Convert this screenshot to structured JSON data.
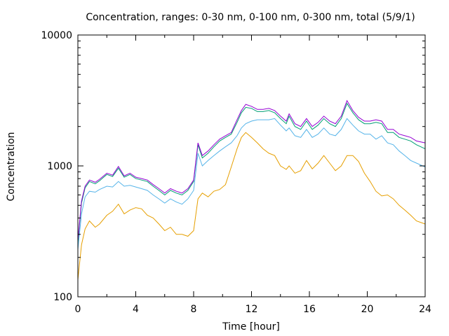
{
  "chart_data": {
    "type": "line",
    "title": "Concentration, ranges: 0-30 nm, 0-100 nm, 0-300 nm, total (5/9/1)",
    "xlabel": "Time [hour]",
    "ylabel": "Concentration",
    "xlim": [
      0,
      24
    ],
    "ylim": [
      100,
      10000
    ],
    "yscale": "log",
    "grid": false,
    "legend": "none",
    "x_ticks": [
      0,
      4,
      8,
      12,
      16,
      20,
      24
    ],
    "x_tick_labels": [
      "0",
      "4",
      "8",
      "12",
      "16",
      "20",
      "24"
    ],
    "y_ticks": [
      100,
      1000,
      10000
    ],
    "y_tick_labels": [
      "100",
      "1000",
      "10000"
    ],
    "series": [
      {
        "color": "#e69f00",
        "x": [
          0,
          0.25,
          0.5,
          0.8,
          1.2,
          1.5,
          2,
          2.4,
          2.8,
          3.2,
          3.6,
          4,
          4.4,
          4.8,
          5.2,
          5.6,
          6,
          6.4,
          6.8,
          7.2,
          7.6,
          8,
          8.3,
          8.6,
          9,
          9.4,
          9.8,
          10.2,
          10.6,
          11,
          11.3,
          11.6,
          12,
          12.4,
          12.8,
          13.2,
          13.6,
          14,
          14.4,
          14.6,
          15,
          15.4,
          15.8,
          16.2,
          16.6,
          17,
          17.4,
          17.8,
          18.2,
          18.6,
          19,
          19.4,
          19.8,
          20.2,
          20.6,
          21,
          21.4,
          21.8,
          22.2,
          22.6,
          23,
          23.4,
          24
        ],
        "y": [
          135,
          250,
          330,
          380,
          340,
          360,
          420,
          450,
          510,
          430,
          460,
          480,
          470,
          420,
          400,
          360,
          320,
          340,
          300,
          300,
          290,
          320,
          560,
          620,
          580,
          640,
          660,
          720,
          980,
          1350,
          1650,
          1800,
          1650,
          1500,
          1350,
          1250,
          1200,
          1000,
          940,
          1000,
          880,
          920,
          1100,
          950,
          1050,
          1200,
          1050,
          920,
          1000,
          1200,
          1200,
          1080,
          880,
          760,
          640,
          590,
          600,
          560,
          500,
          460,
          420,
          380,
          360
        ]
      },
      {
        "color": "#56b4e9",
        "x": [
          0,
          0.25,
          0.5,
          0.8,
          1.2,
          1.5,
          2,
          2.4,
          2.8,
          3.2,
          3.6,
          4,
          4.4,
          4.8,
          5.2,
          5.6,
          6,
          6.4,
          6.8,
          7.2,
          7.6,
          8,
          8.3,
          8.6,
          9,
          9.4,
          9.8,
          10.2,
          10.6,
          11,
          11.3,
          11.6,
          12,
          12.4,
          12.8,
          13.2,
          13.6,
          14,
          14.4,
          14.6,
          15,
          15.4,
          15.8,
          16.2,
          16.6,
          17,
          17.4,
          17.8,
          18.2,
          18.6,
          19,
          19.4,
          19.8,
          20.2,
          20.6,
          21,
          21.4,
          21.8,
          22.2,
          22.6,
          23,
          23.4,
          24
        ],
        "y": [
          230,
          430,
          580,
          640,
          630,
          660,
          700,
          690,
          760,
          700,
          710,
          690,
          670,
          650,
          600,
          560,
          520,
          560,
          530,
          510,
          560,
          650,
          1250,
          1000,
          1100,
          1200,
          1300,
          1400,
          1500,
          1700,
          1950,
          2100,
          2200,
          2250,
          2250,
          2250,
          2300,
          2050,
          1850,
          1950,
          1700,
          1650,
          1900,
          1650,
          1750,
          1950,
          1750,
          1700,
          1900,
          2300,
          2050,
          1850,
          1750,
          1750,
          1600,
          1700,
          1500,
          1450,
          1300,
          1200,
          1100,
          1050,
          980
        ]
      },
      {
        "color": "#009e73",
        "x": [
          0,
          0.25,
          0.5,
          0.8,
          1.2,
          1.5,
          2,
          2.4,
          2.8,
          3.2,
          3.6,
          4,
          4.4,
          4.8,
          5.2,
          5.6,
          6,
          6.4,
          6.8,
          7.2,
          7.6,
          8,
          8.3,
          8.6,
          9,
          9.4,
          9.8,
          10.2,
          10.6,
          11,
          11.3,
          11.6,
          12,
          12.4,
          12.8,
          13.2,
          13.6,
          14,
          14.4,
          14.6,
          15,
          15.4,
          15.8,
          16.2,
          16.6,
          17,
          17.4,
          17.8,
          18.2,
          18.6,
          19,
          19.4,
          19.8,
          20.2,
          20.6,
          21,
          21.4,
          21.8,
          22.2,
          22.6,
          23,
          23.4,
          24
        ],
        "y": [
          260,
          520,
          680,
          760,
          730,
          770,
          860,
          830,
          960,
          820,
          860,
          800,
          780,
          760,
          700,
          650,
          600,
          650,
          620,
          600,
          650,
          760,
          1450,
          1150,
          1250,
          1400,
          1550,
          1650,
          1750,
          2150,
          2550,
          2800,
          2750,
          2600,
          2600,
          2650,
          2550,
          2300,
          2100,
          2400,
          2000,
          1900,
          2200,
          1900,
          2050,
          2300,
          2100,
          2000,
          2300,
          3000,
          2550,
          2250,
          2100,
          2100,
          2150,
          2100,
          1800,
          1800,
          1650,
          1600,
          1550,
          1450,
          1350
        ]
      },
      {
        "color": "#9400d3",
        "x": [
          0,
          0.25,
          0.5,
          0.8,
          1.2,
          1.5,
          2,
          2.4,
          2.8,
          3.2,
          3.6,
          4,
          4.4,
          4.8,
          5.2,
          5.6,
          6,
          6.4,
          6.8,
          7.2,
          7.6,
          8,
          8.3,
          8.6,
          9,
          9.4,
          9.8,
          10.2,
          10.6,
          11,
          11.3,
          11.6,
          12,
          12.4,
          12.8,
          13.2,
          13.6,
          14,
          14.4,
          14.6,
          15,
          15.4,
          15.8,
          16.2,
          16.6,
          17,
          17.4,
          17.8,
          18.2,
          18.6,
          19,
          19.4,
          19.8,
          20.2,
          20.6,
          21,
          21.4,
          21.8,
          22.2,
          22.6,
          23,
          23.4,
          24
        ],
        "y": [
          270,
          540,
          700,
          780,
          750,
          790,
          880,
          850,
          990,
          840,
          880,
          820,
          800,
          780,
          720,
          670,
          620,
          670,
          640,
          620,
          670,
          780,
          1500,
          1200,
          1300,
          1450,
          1600,
          1700,
          1800,
          2250,
          2650,
          2950,
          2850,
          2700,
          2700,
          2750,
          2650,
          2400,
          2200,
          2500,
          2100,
          2000,
          2300,
          2000,
          2150,
          2400,
          2200,
          2100,
          2400,
          3150,
          2650,
          2350,
          2200,
          2200,
          2250,
          2200,
          1900,
          1900,
          1750,
          1700,
          1650,
          1550,
          1500
        ]
      }
    ]
  }
}
